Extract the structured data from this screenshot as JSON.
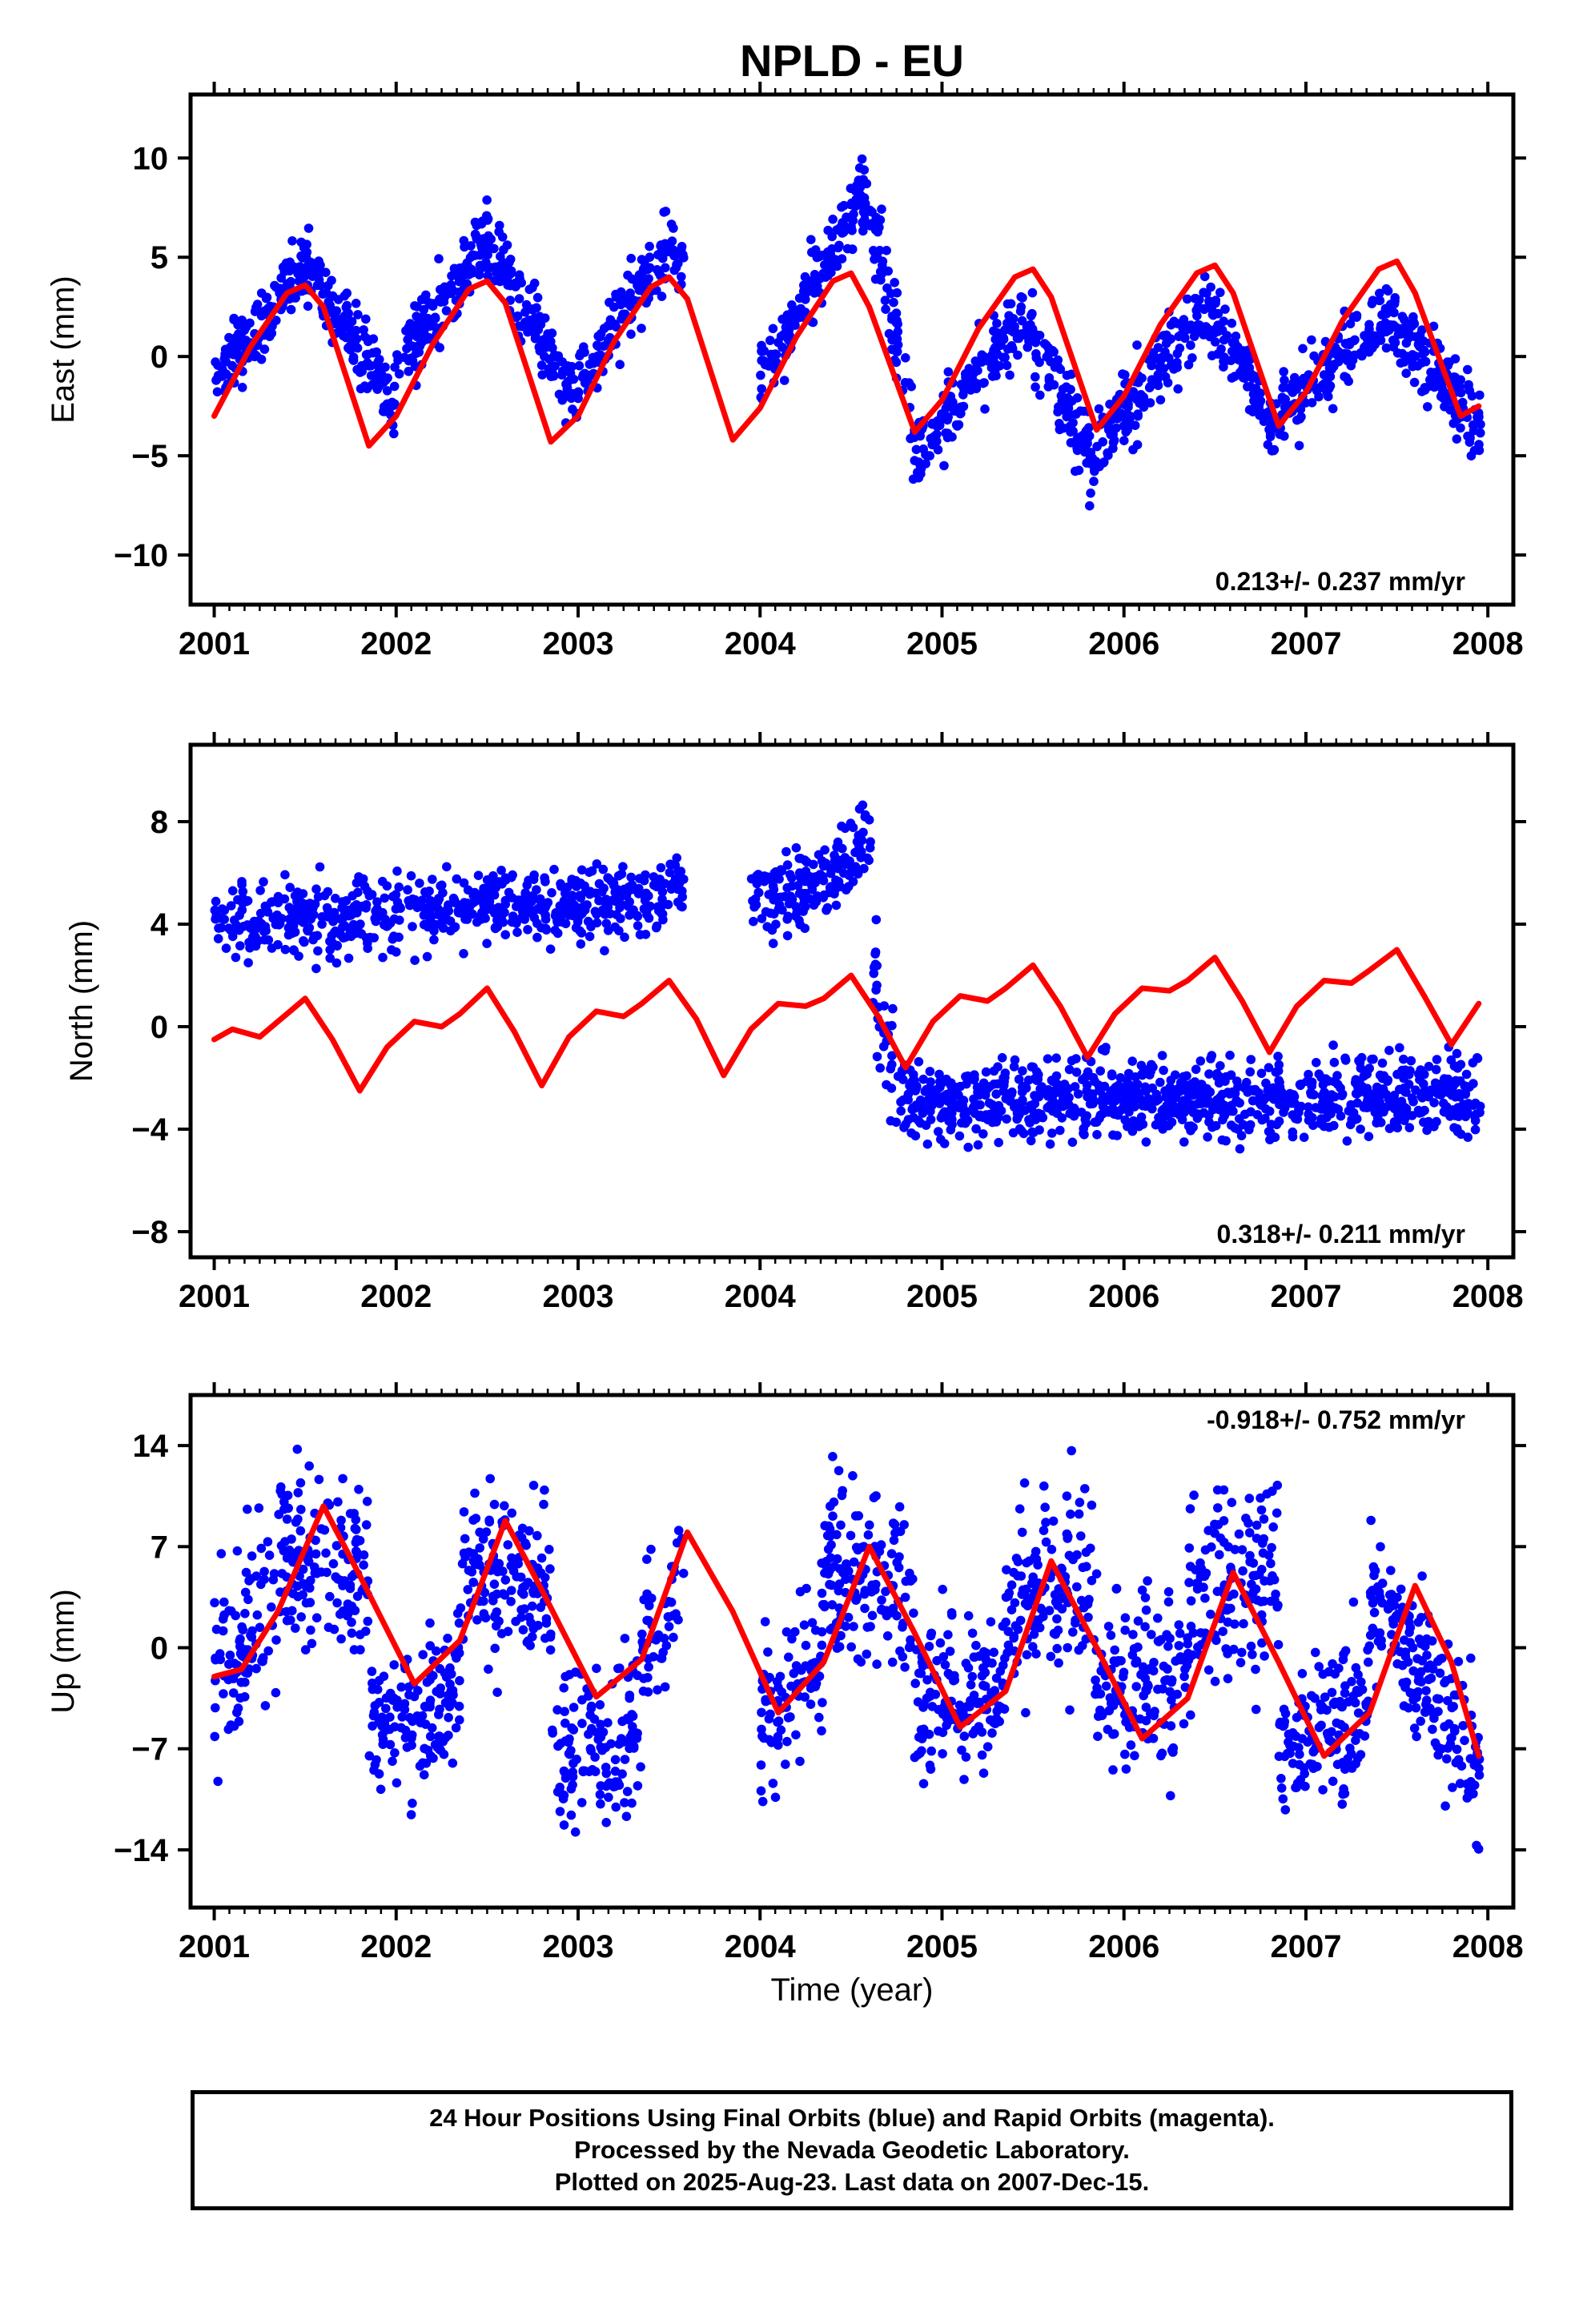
{
  "chart_data": {
    "title": "NPLD - EU",
    "type": "scatter",
    "footer": [
      "24 Hour Positions Using Final Orbits (blue) and Rapid Orbits (magenta).",
      "Processed by the Nevada Geodetic Laboratory.",
      "Plotted on 2025-Aug-23. Last data on 2007-Dec-15."
    ],
    "xlabel": "Time (year)",
    "xlim": [
      2000.87,
      2008.14
    ],
    "xticks": [
      2001,
      2002,
      2003,
      2004,
      2005,
      2006,
      2007,
      2008
    ],
    "colors": {
      "data": "#0000ff",
      "model": "#ff0000",
      "frame": "#000000"
    },
    "panels": [
      {
        "name": "east",
        "ylabel": "East (mm)",
        "ylim": [
          -12.5,
          13.2
        ],
        "yticks": [
          10,
          5,
          0,
          -5,
          -10
        ],
        "rate_text": "0.213+/- 0.237 mm/yr",
        "rate_position": "bottom-right",
        "model": {
          "x": [
            2001.0,
            2001.2,
            2001.4,
            2001.5,
            2001.6,
            2001.85,
            2002.0,
            2002.2,
            2002.4,
            2002.5,
            2002.6,
            2002.85,
            2003.0,
            2003.2,
            2003.4,
            2003.5,
            2003.6,
            2003.85,
            2004.0,
            2004.2,
            2004.4,
            2004.5,
            2004.6,
            2004.85,
            2005.0,
            2005.2,
            2005.4,
            2005.5,
            2005.6,
            2005.85,
            2006.0,
            2006.2,
            2006.4,
            2006.5,
            2006.6,
            2006.85,
            2007.0,
            2007.2,
            2007.4,
            2007.5,
            2007.6,
            2007.85,
            2007.95
          ],
          "y": [
            -3.0,
            0.5,
            3.2,
            3.6,
            2.5,
            -4.5,
            -3.0,
            0.6,
            3.4,
            3.8,
            2.7,
            -4.3,
            -3.0,
            0.8,
            3.5,
            4.0,
            2.9,
            -4.2,
            -2.6,
            1.0,
            3.8,
            4.2,
            2.5,
            -3.8,
            -2.2,
            1.4,
            4.0,
            4.4,
            3.0,
            -3.7,
            -2.0,
            1.6,
            4.2,
            4.6,
            3.2,
            -3.5,
            -1.8,
            1.8,
            4.4,
            4.8,
            3.2,
            -3.0,
            -2.5
          ]
        },
        "scatter": [
          {
            "x": [
              2001.0,
              2001.5
            ],
            "center": [
              -1.5,
              4.5
            ],
            "noise": 1.3,
            "n": 140
          },
          {
            "x": [
              2001.5,
              2002.0
            ],
            "center": [
              4.5,
              -2.0
            ],
            "noise": 1.3,
            "n": 140
          },
          {
            "x": [
              2002.0,
              2002.5
            ],
            "center": [
              -0.5,
              6.0
            ],
            "noise": 1.2,
            "n": 140
          },
          {
            "x": [
              2002.5,
              2003.0
            ],
            "center": [
              6.0,
              -2.5
            ],
            "noise": 1.2,
            "n": 140
          },
          {
            "x": [
              2003.0,
              2003.5
            ],
            "center": [
              -1.5,
              6.0
            ],
            "noise": 1.2,
            "n": 130
          },
          {
            "x": [
              2003.5,
              2003.58
            ],
            "center": [
              6.0,
              4.0
            ],
            "noise": 1.0,
            "n": 20
          },
          {
            "x": [
              2004.0,
              2004.6
            ],
            "center": [
              -1.0,
              8.5
            ],
            "noise": 1.2,
            "n": 160
          },
          {
            "x": [
              2004.6,
              2004.85
            ],
            "center": [
              8.0,
              -4.5
            ],
            "noise": 1.6,
            "n": 60
          },
          {
            "x": [
              2004.85,
              2005.45
            ],
            "center": [
              -5.0,
              2.0
            ],
            "noise": 1.2,
            "n": 150
          },
          {
            "x": [
              2005.45,
              2005.85
            ],
            "center": [
              2.0,
              -5.5
            ],
            "noise": 1.3,
            "n": 110
          },
          {
            "x": [
              2005.85,
              2006.45
            ],
            "center": [
              -4.5,
              2.5
            ],
            "noise": 1.2,
            "n": 150
          },
          {
            "x": [
              2006.45,
              2006.85
            ],
            "center": [
              2.5,
              -3.5
            ],
            "noise": 1.1,
            "n": 110
          },
          {
            "x": [
              2006.85,
              2007.45
            ],
            "center": [
              -3.0,
              2.0
            ],
            "noise": 1.1,
            "n": 150
          },
          {
            "x": [
              2007.45,
              2007.96
            ],
            "center": [
              2.0,
              -3.5
            ],
            "noise": 1.3,
            "n": 140
          }
        ]
      },
      {
        "name": "north",
        "ylabel": "North (mm)",
        "ylim": [
          -9.0,
          11.0
        ],
        "yticks": [
          8,
          4,
          0,
          -4,
          -8
        ],
        "rate_text": "0.318+/- 0.211 mm/yr",
        "rate_position": "bottom-right",
        "model": {
          "x": [
            2001.0,
            2001.1,
            2001.25,
            2001.35,
            2001.5,
            2001.65,
            2001.8,
            2001.95,
            2002.1,
            2002.25,
            2002.35,
            2002.5,
            2002.65,
            2002.8,
            2002.95,
            2003.1,
            2003.25,
            2003.35,
            2003.5,
            2003.65,
            2003.8,
            2003.95,
            2004.1,
            2004.25,
            2004.35,
            2004.5,
            2004.65,
            2004.8,
            2004.95,
            2005.1,
            2005.25,
            2005.35,
            2005.5,
            2005.65,
            2005.8,
            2005.95,
            2006.1,
            2006.25,
            2006.35,
            2006.5,
            2006.65,
            2006.8,
            2006.95,
            2007.1,
            2007.25,
            2007.35,
            2007.5,
            2007.65,
            2007.8,
            2007.95
          ],
          "y": [
            -0.5,
            -0.1,
            -0.4,
            0.2,
            1.1,
            -0.5,
            -2.5,
            -0.8,
            0.2,
            0.0,
            0.5,
            1.5,
            -0.2,
            -2.3,
            -0.4,
            0.6,
            0.4,
            0.9,
            1.8,
            0.3,
            -1.9,
            -0.1,
            0.9,
            0.8,
            1.1,
            2.0,
            0.4,
            -1.6,
            0.2,
            1.2,
            1.0,
            1.5,
            2.4,
            0.8,
            -1.2,
            0.5,
            1.5,
            1.4,
            1.8,
            2.7,
            1.0,
            -1.0,
            0.8,
            1.8,
            1.7,
            2.2,
            3.0,
            1.2,
            -0.7,
            0.9
          ]
        },
        "scatter": [
          {
            "x": [
              2001.0,
              2002.0
            ],
            "center": [
              4.2,
              4.2
            ],
            "noise": 1.0,
            "n": 230
          },
          {
            "x": [
              2002.0,
              2003.0
            ],
            "center": [
              4.5,
              4.8
            ],
            "noise": 0.9,
            "n": 230
          },
          {
            "x": [
              2003.0,
              2003.58
            ],
            "center": [
              4.8,
              5.3
            ],
            "noise": 0.9,
            "n": 140
          },
          {
            "x": [
              2003.95,
              2004.4
            ],
            "center": [
              4.8,
              5.8
            ],
            "noise": 0.9,
            "n": 110
          },
          {
            "x": [
              2004.4,
              2004.62
            ],
            "center": [
              6.0,
              7.8
            ],
            "noise": 0.9,
            "n": 50
          },
          {
            "x": [
              2004.62,
              2004.75
            ],
            "center": [
              2.5,
              -2.5
            ],
            "noise": 1.6,
            "n": 30
          },
          {
            "x": [
              2004.75,
              2006.0
            ],
            "center": [
              -3.0,
              -2.8
            ],
            "noise": 1.0,
            "n": 360
          },
          {
            "x": [
              2006.0,
              2007.0
            ],
            "center": [
              -2.8,
              -2.8
            ],
            "noise": 1.0,
            "n": 290
          },
          {
            "x": [
              2007.0,
              2007.96
            ],
            "center": [
              -2.8,
              -2.6
            ],
            "noise": 1.0,
            "n": 270
          }
        ]
      },
      {
        "name": "up",
        "ylabel": "Up (mm)",
        "ylim": [
          -18.0,
          17.5
        ],
        "yticks": [
          14,
          7,
          0,
          -7,
          -14
        ],
        "rate_text": "-0.918+/- 0.752 mm/yr",
        "rate_position": "top-right",
        "model": {
          "x": [
            2001.0,
            2001.15,
            2001.35,
            2001.6,
            2001.8,
            2002.1,
            2002.35,
            2002.6,
            2002.8,
            2003.1,
            2003.35,
            2003.6,
            2003.85,
            2004.1,
            2004.35,
            2004.6,
            2004.85,
            2005.1,
            2005.35,
            2005.6,
            2005.85,
            2006.1,
            2006.35,
            2006.6,
            2006.85,
            2007.1,
            2007.35,
            2007.6,
            2007.8,
            2007.95
          ],
          "y": [
            -2.0,
            -1.5,
            2.5,
            9.8,
            5.0,
            -2.5,
            0.5,
            8.8,
            4.0,
            -3.4,
            -0.8,
            8.0,
            2.5,
            -4.5,
            -1.0,
            7.0,
            1.0,
            -5.5,
            -3.0,
            6.0,
            0.0,
            -6.3,
            -3.5,
            5.2,
            -1.0,
            -7.5,
            -4.5,
            4.3,
            -1.0,
            -7.5
          ]
        },
        "scatter": [
          {
            "x": [
              2001.0,
              2001.35
            ],
            "center": [
              -2.0,
              3.0
            ],
            "noise": 4.5,
            "n": 90
          },
          {
            "x": [
              2001.35,
              2001.85
            ],
            "center": [
              7.0,
              5.0
            ],
            "noise": 3.8,
            "n": 140
          },
          {
            "x": [
              2001.85,
              2002.35
            ],
            "center": [
              -6.0,
              -3.0
            ],
            "noise": 3.2,
            "n": 140
          },
          {
            "x": [
              2002.35,
              2002.85
            ],
            "center": [
              6.0,
              4.0
            ],
            "noise": 3.8,
            "n": 140
          },
          {
            "x": [
              2002.85,
              2003.35
            ],
            "center": [
              -8.0,
              -6.0
            ],
            "noise": 3.5,
            "n": 130
          },
          {
            "x": [
              2003.35,
              2003.58
            ],
            "center": [
              -1.0,
              5.0
            ],
            "noise": 3.2,
            "n": 50
          },
          {
            "x": [
              2004.0,
              2004.35
            ],
            "center": [
              -5.0,
              0.0
            ],
            "noise": 3.8,
            "n": 90
          },
          {
            "x": [
              2004.35,
              2004.85
            ],
            "center": [
              6.0,
              3.0
            ],
            "noise": 4.0,
            "n": 140
          },
          {
            "x": [
              2004.85,
              2005.35
            ],
            "center": [
              -4.0,
              -3.0
            ],
            "noise": 3.5,
            "n": 140
          },
          {
            "x": [
              2005.35,
              2005.85
            ],
            "center": [
              3.0,
              4.0
            ],
            "noise": 4.5,
            "n": 140
          },
          {
            "x": [
              2005.85,
              2006.35
            ],
            "center": [
              -3.0,
              -2.0
            ],
            "noise": 3.8,
            "n": 140
          },
          {
            "x": [
              2006.35,
              2006.85
            ],
            "center": [
              3.0,
              6.0
            ],
            "noise": 4.5,
            "n": 140
          },
          {
            "x": [
              2006.85,
              2007.35
            ],
            "center": [
              -7.0,
              -4.0
            ],
            "noise": 3.5,
            "n": 140
          },
          {
            "x": [
              2007.35,
              2007.96
            ],
            "center": [
              4.0,
              -8.0
            ],
            "noise": 3.8,
            "n": 170
          }
        ]
      }
    ]
  }
}
